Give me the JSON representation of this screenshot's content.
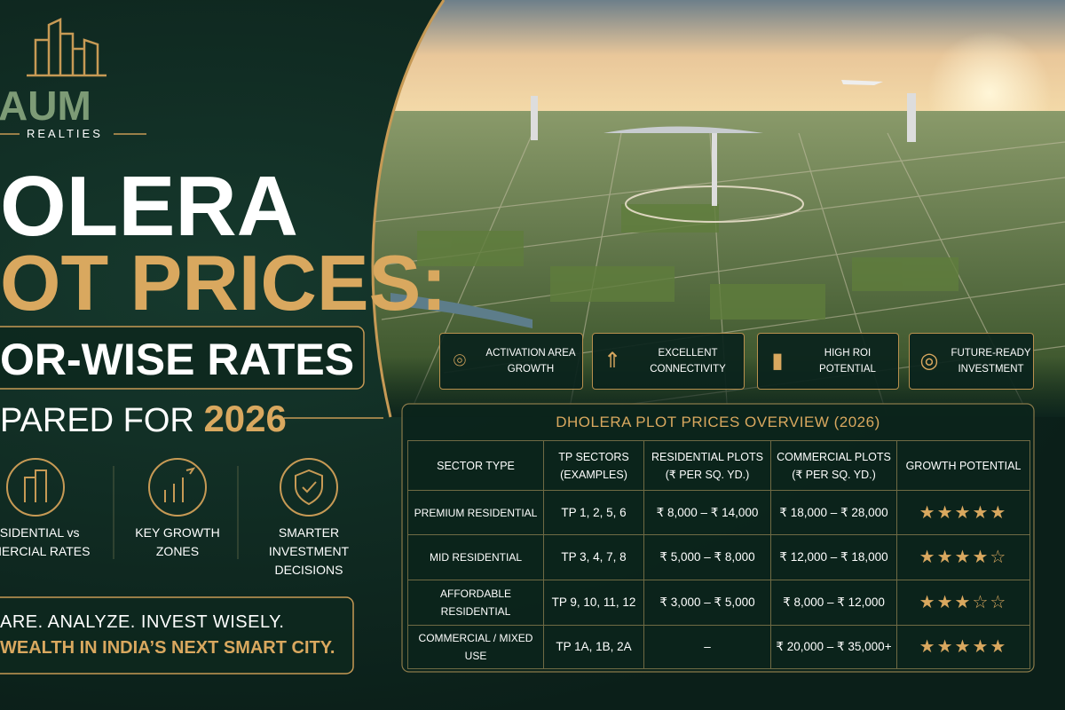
{
  "logo": {
    "name": "AUM",
    "tagline": "REALTIES"
  },
  "headline": {
    "line1": "OLERA",
    "line2": "OT PRICES:",
    "line3": "OR-WISE RATES",
    "line4": "PARED FOR",
    "year": "2026"
  },
  "features": [
    {
      "line1": "ESIDENTIAL vs",
      "line2": "MMERCIAL RATES"
    },
    {
      "line1": "KEY GROWTH",
      "line2": "ZONES"
    },
    {
      "line1": "SMARTER INVESTMENT",
      "line2": "DECISIONS"
    }
  ],
  "slogan": {
    "line1": "ARE. ANALYZE. INVEST WISELY.",
    "line2": "WEALTH IN INDIA’S NEXT SMART CITY."
  },
  "badges": [
    {
      "line1": "ACTIVATION AREA",
      "line2": "GROWTH"
    },
    {
      "line1": "EXCELLENT",
      "line2": "CONNECTIVITY"
    },
    {
      "line1": "HIGH ROI",
      "line2": "POTENTIAL"
    },
    {
      "line1": "FUTURE-READY",
      "line2": "INVESTMENT"
    }
  ],
  "table": {
    "title": "DHOLERA PLOT PRICES OVERVIEW (2026)",
    "header": [
      [
        "SECTOR TYPE"
      ],
      [
        "TP SECTORS",
        "(EXAMPLES)"
      ],
      [
        "RESIDENTIAL PLOTS",
        "(₹ PER SQ. YD.)"
      ],
      [
        "COMMERCIAL PLOTS",
        "(₹ PER SQ. YD.)"
      ],
      [
        "GROWTH POTENTIAL"
      ]
    ],
    "rows": [
      [
        "PREMIUM RESIDENTIAL",
        "TP 1, 2, 5, 6",
        "₹ 8,000 – ₹ 14,000",
        "₹ 18,000 – ₹ 28,000"
      ],
      [
        "MID RESIDENTIAL",
        "TP 3, 4, 7, 8",
        "₹ 5,000 – ₹ 8,000",
        "₹ 12,000 – ₹ 18,000"
      ],
      [
        "AFFORDABLE RESIDENTIAL",
        "TP 9, 10, 11, 12",
        "₹ 3,000 – ₹ 5,000",
        "₹ 8,000 – ₹ 12,000"
      ],
      [
        "COMMERCIAL / MIXED USE",
        "TP 1A, 1B, 2A",
        "–",
        "₹ 20,000 – ₹ 35,000+"
      ]
    ],
    "ratings": [
      5,
      4,
      3,
      5
    ],
    "rating_scale": 5
  }
}
